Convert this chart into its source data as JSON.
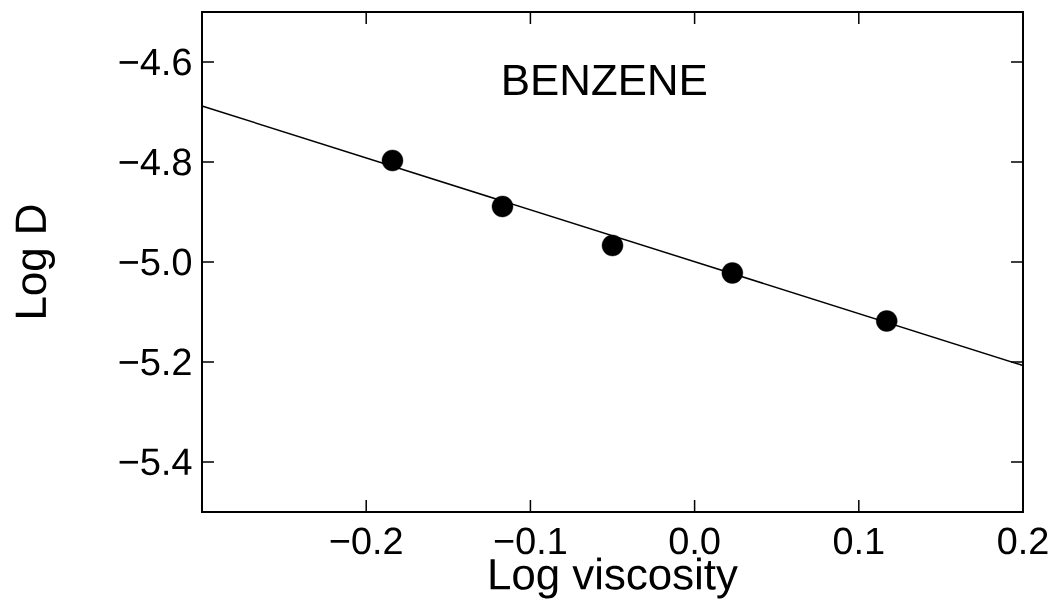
{
  "chart_data": {
    "type": "scatter",
    "xlabel": "Log viscosity",
    "ylabel": "Log D",
    "annotations": [
      "BENZENE"
    ],
    "xlim": [
      -0.3,
      0.2
    ],
    "ylim": [
      -5.5,
      -4.5
    ],
    "xticks": [
      {
        "value": -0.2,
        "label": "−0.2"
      },
      {
        "value": -0.1,
        "label": "−0.1"
      },
      {
        "value": 0,
        "label": "0.0"
      },
      {
        "value": 0.1,
        "label": "0.1"
      },
      {
        "value": 0.2,
        "label": "0.2"
      }
    ],
    "yticks": [
      {
        "value": -5.4,
        "label": "−5.4"
      },
      {
        "value": -5.2,
        "label": "−5.2"
      },
      {
        "value": -5.0,
        "label": "−5.0"
      },
      {
        "value": -4.8,
        "label": "−4.8"
      },
      {
        "value": -4.6,
        "label": "−4.6"
      }
    ],
    "marker": "circle",
    "series": [
      {
        "color": "#000000",
        "x": [
          -0.184,
          -0.117,
          -0.05,
          0.023,
          0.117
        ],
        "values": [
          -4.797,
          -4.889,
          -4.967,
          -5.022,
          -5.118
        ]
      },
      {
        "type": "line",
        "color": "#000000",
        "marker": "none",
        "line_style": "solid",
        "x": [
          -0.3,
          0.2
        ],
        "values": [
          -4.688,
          -5.207
        ]
      }
    ]
  }
}
